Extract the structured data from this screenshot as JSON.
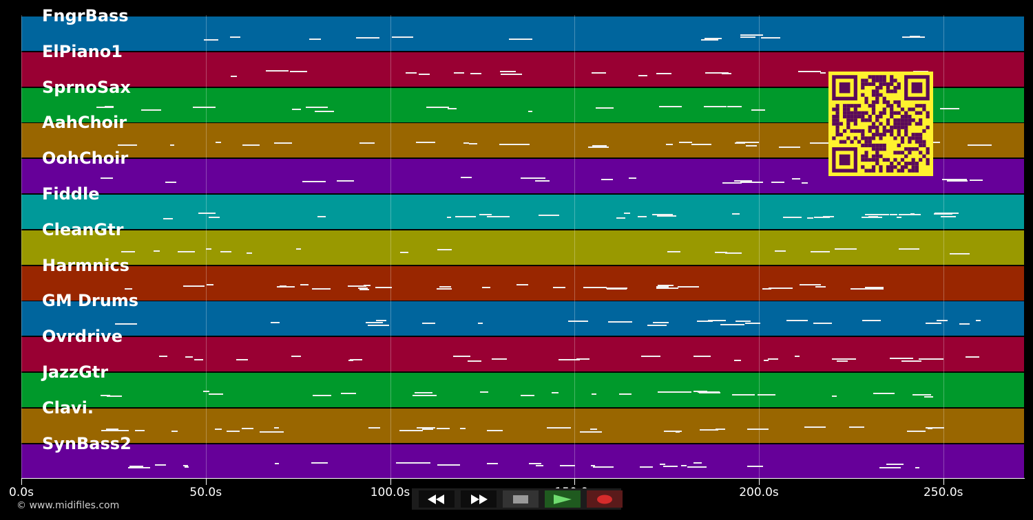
{
  "tracks": [
    {
      "name": "FngrBass",
      "color": "#00659d"
    },
    {
      "name": "ElPiano1",
      "color": "#990033"
    },
    {
      "name": "SprnoSax",
      "color": "#00992b"
    },
    {
      "name": "AahChoir",
      "color": "#996600"
    },
    {
      "name": "OohChoir",
      "color": "#660099"
    },
    {
      "name": "Fiddle",
      "color": "#009999"
    },
    {
      "name": "CleanGtr",
      "color": "#999900"
    },
    {
      "name": "Harmnics",
      "color": "#992600"
    },
    {
      "name": "GM Drums",
      "color": "#00659d"
    },
    {
      "name": "Ovrdrive",
      "color": "#990033"
    },
    {
      "name": "JazzGtr",
      "color": "#00992b"
    },
    {
      "name": "Clavi.",
      "color": "#996600"
    },
    {
      "name": "SynBass2",
      "color": "#660099"
    }
  ],
  "timeline": {
    "tick_values": [
      0,
      50,
      100,
      150,
      200,
      250
    ],
    "tick_labels": [
      "0.0s",
      "50.0s",
      "100.0s",
      "150.0s",
      "200.0s",
      "250.0s"
    ],
    "max_seconds": 272
  },
  "copyright": "© www.midifiles.com",
  "controls": {
    "rewind_icon": "rewind-icon",
    "forward_icon": "fast-forward-icon",
    "stop_icon": "stop-icon",
    "play_icon": "play-icon",
    "record_icon": "record-icon"
  },
  "qr_code": {
    "color": "#fff22e",
    "module_color": "#5a0a5a"
  }
}
